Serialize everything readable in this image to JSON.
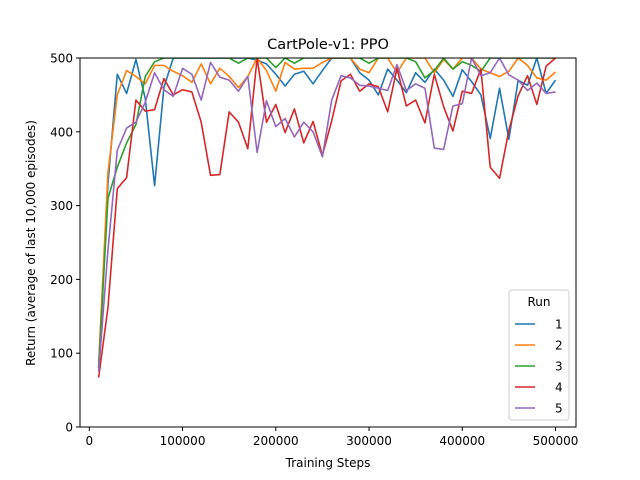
{
  "chart_data": {
    "type": "line",
    "title": "CartPole-v1: PPO",
    "xlabel": "Training Steps",
    "ylabel": "Return (average of last 10,000 episodes)",
    "xlim": [
      -10000,
      522000
    ],
    "ylim": [
      0,
      500
    ],
    "xticks": [
      0,
      100000,
      200000,
      300000,
      400000,
      500000
    ],
    "yticks": [
      0,
      100,
      200,
      300,
      400,
      500
    ],
    "grid": false,
    "legend": {
      "title": "Run",
      "position": "bottom-right"
    },
    "x": [
      10000,
      20000,
      30000,
      40000,
      50000,
      60000,
      70000,
      80000,
      90000,
      100000,
      110000,
      120000,
      130000,
      140000,
      150000,
      160000,
      170000,
      180000,
      190000,
      200000,
      210000,
      220000,
      230000,
      240000,
      250000,
      260000,
      270000,
      280000,
      290000,
      300000,
      310000,
      320000,
      330000,
      340000,
      350000,
      360000,
      370000,
      380000,
      390000,
      400000,
      410000,
      420000,
      430000,
      440000,
      450000,
      460000,
      470000,
      480000,
      490000,
      500000
    ],
    "series": [
      {
        "name": "1",
        "color": "#1f77b4",
        "values": [
          80,
          330,
          478,
          452,
          498,
          445,
          327,
          460,
          500,
          500,
          500,
          500,
          500,
          500,
          500,
          500,
          500,
          497,
          492,
          478,
          462,
          478,
          482,
          465,
          483,
          500,
          500,
          500,
          480,
          470,
          450,
          485,
          470,
          453,
          480,
          467,
          485,
          470,
          448,
          484,
          468,
          450,
          391,
          459,
          390,
          470,
          463,
          500,
          452,
          470
        ]
      },
      {
        "name": "2",
        "color": "#ff7f0e",
        "values": [
          85,
          345,
          450,
          483,
          475,
          465,
          490,
          490,
          482,
          476,
          467,
          492,
          465,
          486,
          475,
          460,
          475,
          500,
          483,
          455,
          494,
          485,
          486,
          486,
          494,
          500,
          500,
          500,
          485,
          480,
          500,
          500,
          480,
          500,
          500,
          500,
          480,
          498,
          485,
          500,
          500,
          485,
          480,
          475,
          482,
          500,
          490,
          473,
          470,
          481
        ]
      },
      {
        "name": "3",
        "color": "#2ca02c",
        "values": [
          80,
          310,
          352,
          385,
          410,
          475,
          495,
          500,
          500,
          500,
          500,
          500,
          500,
          500,
          500,
          493,
          500,
          500,
          500,
          487,
          500,
          493,
          500,
          500,
          500,
          500,
          500,
          500,
          500,
          493,
          500,
          500,
          500,
          500,
          495,
          473,
          483,
          500,
          485,
          495,
          490,
          482,
          500,
          500,
          500,
          500,
          500,
          500,
          500,
          500
        ]
      },
      {
        "name": "4",
        "color": "#d62728",
        "values": [
          67,
          162,
          323,
          338,
          443,
          428,
          430,
          472,
          450,
          457,
          454,
          413,
          341,
          342,
          427,
          413,
          377,
          500,
          413,
          437,
          399,
          431,
          385,
          414,
          368,
          415,
          469,
          478,
          455,
          465,
          461,
          427,
          486,
          435,
          443,
          412,
          478,
          434,
          401,
          455,
          452,
          485,
          352,
          337,
          402,
          449,
          476,
          437,
          489,
          500
        ]
      },
      {
        "name": "5",
        "color": "#9467bd",
        "values": [
          75,
          240,
          375,
          405,
          413,
          440,
          480,
          457,
          448,
          486,
          478,
          443,
          494,
          474,
          470,
          455,
          475,
          372,
          442,
          407,
          418,
          393,
          413,
          400,
          366,
          443,
          476,
          473,
          463,
          462,
          459,
          456,
          491,
          456,
          465,
          459,
          378,
          376,
          435,
          438,
          500,
          476,
          480,
          500,
          477,
          470,
          456,
          466,
          452,
          454
        ]
      }
    ]
  }
}
